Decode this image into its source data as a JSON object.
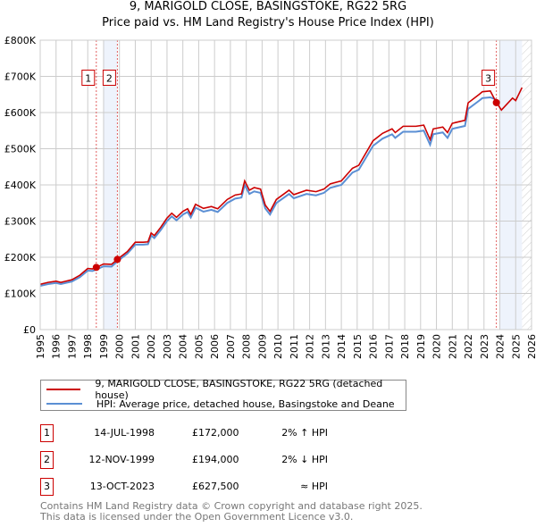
{
  "chart_data": {
    "type": "line",
    "title": "9, MARIGOLD CLOSE, BASINGSTOKE, RG22 5RG",
    "subtitle": "Price paid vs. HM Land Registry's House Price Index (HPI)",
    "xlim": [
      1995,
      2026
    ],
    "ylim": [
      0,
      800000
    ],
    "y_ticks": [
      0,
      100000,
      200000,
      300000,
      400000,
      500000,
      600000,
      700000,
      800000
    ],
    "y_tick_labels": [
      "£0",
      "£100K",
      "£200K",
      "£300K",
      "£400K",
      "£500K",
      "£600K",
      "£700K",
      "£800K"
    ],
    "x_ticks": [
      1995,
      1996,
      1997,
      1998,
      1999,
      2000,
      2001,
      2002,
      2003,
      2004,
      2005,
      2006,
      2007,
      2008,
      2009,
      2010,
      2011,
      2012,
      2013,
      2014,
      2015,
      2016,
      2017,
      2018,
      2019,
      2020,
      2021,
      2022,
      2023,
      2024,
      2025,
      2026
    ],
    "grid": true,
    "legend_position": "below",
    "hpi_series": {
      "name": "HPI: Average price, detached house, Basingstoke and Deane",
      "color": "#5b8fd4",
      "x": [
        1995.0,
        1995.5,
        1996.0,
        1996.3,
        1996.6,
        1997.0,
        1997.5,
        1998.0,
        1998.3,
        1998.6,
        1999.0,
        1999.5,
        1999.9,
        2000.5,
        2001.0,
        2001.5,
        2001.8,
        2002.0,
        2002.2,
        2002.6,
        2003.0,
        2003.3,
        2003.6,
        2004.0,
        2004.3,
        2004.5,
        2004.8,
        2005.3,
        2005.8,
        2006.2,
        2006.8,
        2007.3,
        2007.7,
        2007.9,
        2008.2,
        2008.5,
        2008.9,
        2009.2,
        2009.5,
        2009.9,
        2010.7,
        2011.0,
        2011.8,
        2012.4,
        2012.9,
        2013.3,
        2014.0,
        2014.7,
        2015.1,
        2016.0,
        2016.6,
        2017.2,
        2017.4,
        2017.9,
        2018.7,
        2019.2,
        2019.6,
        2019.8,
        2020.4,
        2020.7,
        2021.0,
        2021.8,
        2022.0,
        2022.7,
        2022.9,
        2023.4,
        2023.8
      ],
      "y": [
        121000,
        126000,
        129000,
        126000,
        129000,
        133000,
        145000,
        163000,
        162000,
        167000,
        175000,
        174000,
        190000,
        210000,
        235000,
        235000,
        236000,
        260000,
        253000,
        275000,
        300000,
        313000,
        302000,
        318000,
        325000,
        310000,
        337000,
        326000,
        331000,
        325000,
        350000,
        362000,
        365000,
        400000,
        375000,
        382000,
        378000,
        335000,
        318000,
        350000,
        375000,
        363000,
        375000,
        371000,
        378000,
        392000,
        400000,
        434000,
        442000,
        508000,
        528000,
        540000,
        530000,
        547000,
        547000,
        550000,
        511000,
        540000,
        545000,
        530000,
        555000,
        563000,
        610000,
        633000,
        640000,
        642000,
        635000
      ]
    },
    "property_series": {
      "name": "9, MARIGOLD CLOSE, BASINGSTOKE, RG22 5RG (detached house)",
      "color": "#cc0000",
      "end_x": 2025.4,
      "extra_x": [
        2024.1,
        2024.8,
        2025.0,
        2025.4
      ],
      "extra_y": [
        607000,
        640000,
        633000,
        669000
      ]
    },
    "sales": [
      {
        "id": "1",
        "x": 1998.54,
        "price": 172000
      },
      {
        "id": "2",
        "x": 1999.87,
        "price": 194000
      },
      {
        "id": "3",
        "x": 2023.78,
        "price": 627500
      }
    ],
    "shaded_ranges": [
      [
        1999.0,
        1999.87
      ],
      [
        2024.0,
        2025.4
      ]
    ],
    "hatched_range": [
      2025.4,
      2026
    ]
  },
  "legend": {
    "property": "9, MARIGOLD CLOSE, BASINGSTOKE, RG22 5RG (detached house)",
    "hpi": "HPI: Average price, detached house, Basingstoke and Deane"
  },
  "transactions": [
    {
      "num": "1",
      "date": "14-JUL-1998",
      "price": "£172,000",
      "hpi": "2% ↑ HPI"
    },
    {
      "num": "2",
      "date": "12-NOV-1999",
      "price": "£194,000",
      "hpi": "2% ↓ HPI"
    },
    {
      "num": "3",
      "date": "13-OCT-2023",
      "price": "£627,500",
      "hpi": "≈ HPI"
    }
  ],
  "footer": {
    "line1": "Contains HM Land Registry data © Crown copyright and database right 2025.",
    "line2": "This data is licensed under the Open Government Licence v3.0."
  }
}
